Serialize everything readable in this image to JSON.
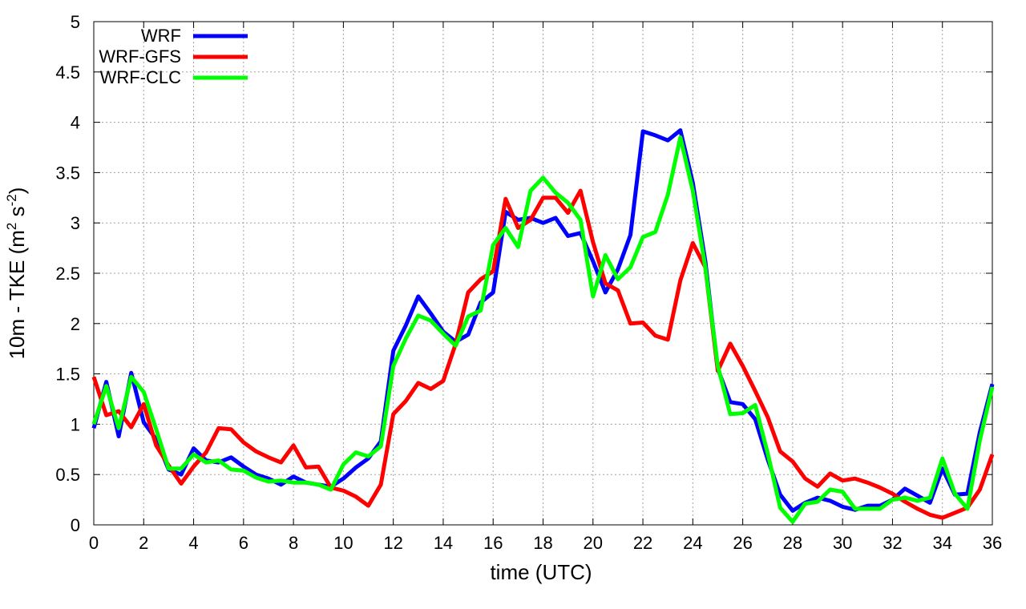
{
  "chart_data": {
    "type": "line",
    "xlabel": "time (UTC)",
    "ylabel": "10m - TKE (m",
    "ylabel_sup1": "2",
    "ylabel_mid": " s",
    "ylabel_sup2": "-2",
    "ylabel_end": ")",
    "xlim": [
      0,
      36
    ],
    "ylim": [
      0,
      5
    ],
    "xticks": [
      "0",
      "2",
      "4",
      "6",
      "8",
      "10",
      "12",
      "14",
      "16",
      "18",
      "20",
      "22",
      "24",
      "26",
      "28",
      "30",
      "32",
      "34",
      "36"
    ],
    "yticks": [
      "0",
      "0.5",
      "1",
      "1.5",
      "2",
      "2.5",
      "3",
      "3.5",
      "4",
      "4.5",
      "5"
    ],
    "grid": true,
    "legend_position": "top-left",
    "x": [
      0,
      0.5,
      1,
      1.5,
      2,
      2.5,
      3,
      3.5,
      4,
      4.5,
      5,
      5.5,
      6,
      6.5,
      7,
      7.5,
      8,
      8.5,
      9,
      9.5,
      10,
      10.5,
      11,
      11.5,
      12,
      12.5,
      13,
      13.5,
      14,
      14.5,
      15,
      15.5,
      16,
      16.5,
      17,
      17.5,
      18,
      18.5,
      19,
      19.5,
      20,
      20.5,
      21,
      21.5,
      22,
      22.5,
      23,
      23.5,
      24,
      24.5,
      25,
      25.5,
      26,
      26.5,
      27,
      27.5,
      28,
      28.5,
      29,
      29.5,
      30,
      30.5,
      31,
      31.5,
      32,
      32.5,
      33,
      33.5,
      34,
      34.5,
      35,
      35.5,
      36
    ],
    "series": [
      {
        "name": "WRF",
        "color": "#0000ff",
        "values": [
          0.96,
          1.42,
          0.88,
          1.51,
          1.02,
          0.85,
          0.55,
          0.5,
          0.76,
          0.64,
          0.62,
          0.67,
          0.58,
          0.5,
          0.46,
          0.4,
          0.48,
          0.42,
          0.4,
          0.38,
          0.46,
          0.57,
          0.66,
          0.83,
          1.73,
          1.98,
          2.27,
          2.1,
          1.92,
          1.82,
          1.89,
          2.21,
          2.31,
          3.11,
          3.03,
          3.05,
          3.0,
          3.05,
          2.87,
          2.9,
          2.62,
          2.31,
          2.54,
          2.88,
          3.91,
          3.87,
          3.82,
          3.92,
          3.4,
          2.62,
          1.55,
          1.22,
          1.2,
          1.05,
          0.65,
          0.3,
          0.14,
          0.22,
          0.27,
          0.24,
          0.18,
          0.15,
          0.19,
          0.19,
          0.25,
          0.36,
          0.29,
          0.22,
          0.56,
          0.3,
          0.31,
          0.92,
          1.4
        ]
      },
      {
        "name": "WRF-GFS",
        "color": "#ff0000",
        "values": [
          1.47,
          1.09,
          1.13,
          0.97,
          1.2,
          0.79,
          0.59,
          0.41,
          0.58,
          0.72,
          0.96,
          0.95,
          0.82,
          0.73,
          0.67,
          0.62,
          0.79,
          0.57,
          0.58,
          0.37,
          0.34,
          0.28,
          0.19,
          0.4,
          1.1,
          1.23,
          1.41,
          1.35,
          1.43,
          1.8,
          2.31,
          2.44,
          2.52,
          3.24,
          2.95,
          3.03,
          3.25,
          3.25,
          3.1,
          3.32,
          2.81,
          2.4,
          2.33,
          2.0,
          2.01,
          1.88,
          1.84,
          2.43,
          2.8,
          2.56,
          1.53,
          1.8,
          1.58,
          1.33,
          1.07,
          0.73,
          0.63,
          0.46,
          0.38,
          0.51,
          0.44,
          0.46,
          0.42,
          0.37,
          0.31,
          0.23,
          0.16,
          0.1,
          0.07,
          0.12,
          0.17,
          0.35,
          0.7
        ]
      },
      {
        "name": "WRF-CLC",
        "color": "#00ff00",
        "values": [
          1.0,
          1.38,
          0.96,
          1.47,
          1.32,
          0.95,
          0.56,
          0.56,
          0.7,
          0.62,
          0.64,
          0.55,
          0.54,
          0.47,
          0.43,
          0.44,
          0.42,
          0.42,
          0.4,
          0.35,
          0.6,
          0.72,
          0.68,
          0.78,
          1.58,
          1.85,
          2.08,
          2.03,
          1.9,
          1.78,
          2.07,
          2.13,
          2.78,
          2.95,
          2.76,
          3.32,
          3.45,
          3.3,
          3.2,
          3.03,
          2.27,
          2.68,
          2.44,
          2.56,
          2.86,
          2.91,
          3.28,
          3.85,
          3.32,
          2.56,
          1.58,
          1.1,
          1.11,
          1.19,
          0.71,
          0.17,
          0.03,
          0.21,
          0.23,
          0.35,
          0.33,
          0.16,
          0.16,
          0.16,
          0.25,
          0.27,
          0.24,
          0.27,
          0.66,
          0.31,
          0.16,
          0.84,
          1.37
        ]
      }
    ]
  }
}
